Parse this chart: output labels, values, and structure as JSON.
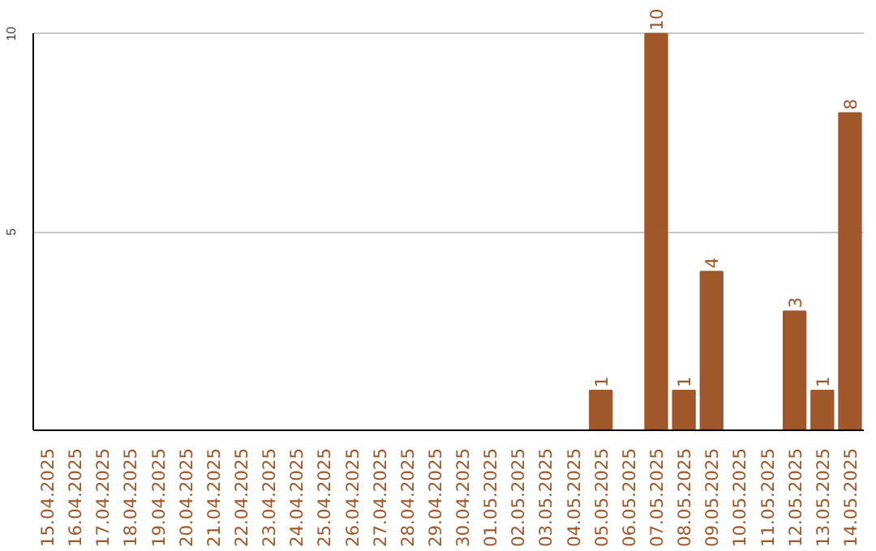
{
  "chart_data": {
    "type": "bar",
    "categories": [
      "15.04.2025",
      "16.04.2025",
      "17.04.2025",
      "18.04.2025",
      "19.04.2025",
      "20.04.2025",
      "21.04.2025",
      "22.04.2025",
      "23.04.2025",
      "24.04.2025",
      "25.04.2025",
      "26.04.2025",
      "27.04.2025",
      "28.04.2025",
      "29.04.2025",
      "30.04.2025",
      "01.05.2025",
      "02.05.2025",
      "03.05.2025",
      "04.05.2025",
      "05.05.2025",
      "06.05.2025",
      "07.05.2025",
      "08.05.2025",
      "09.05.2025",
      "10.05.2025",
      "11.05.2025",
      "12.05.2025",
      "13.05.2025",
      "14.05.2025"
    ],
    "values": [
      0,
      0,
      0,
      0,
      0,
      0,
      0,
      0,
      0,
      0,
      0,
      0,
      0,
      0,
      0,
      0,
      0,
      0,
      0,
      0,
      1,
      0,
      10,
      1,
      4,
      0,
      0,
      3,
      1,
      8
    ],
    "value_labels": [
      null,
      null,
      null,
      null,
      null,
      null,
      null,
      null,
      null,
      null,
      null,
      null,
      null,
      null,
      null,
      null,
      null,
      null,
      null,
      null,
      "1",
      null,
      "10",
      "1",
      "4",
      null,
      null,
      "3",
      "1",
      "8"
    ],
    "color": "#a0572a",
    "ylim": [
      0,
      10
    ],
    "yticks": [
      5,
      10
    ],
    "grid": "y"
  }
}
